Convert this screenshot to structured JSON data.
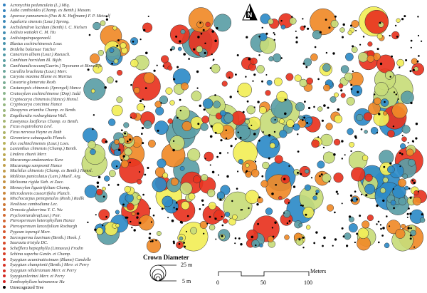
{
  "legend": {
    "items": [
      "Acronychia pedunculata (L.) Miq.",
      "Aidia canthioides (Champ. ex Benth.) Masam.",
      "Aporosa yunnanensis (Pax & K. Hoffmann) F. P. Metcalf",
      "Aquilaria sinensis (Lour.) Spreng.",
      "Archidendron lucidum (Benth) I. C. Nielsen",
      "Ardisia waitakii C. M. Hu",
      "Ardisiaquinquegonaoll.",
      "Blastus cochinchinensis Lour.",
      "Bridelia balansae Tutcher",
      "Canarium album (Lour.) Raeusch.",
      "Canthium horridum Bl. Bijdr.",
      "Canthiumdicoccum(Gaertn.) Teysmann et Binnedijk",
      "Carallia brachiata (Lour.) Merr.",
      "Caryota maxima Blume ex Martius",
      "Casearia glomerata Roxb.",
      "Castanopsis chinensis (Sprengel) Hance",
      "Cratoxylum cochinchinense (Dop) Judd",
      "Cryptocarya chinensis (Hance) Hemsl.",
      "Cryptocarya concinna Hance",
      "Diospyros eriantha Champ. ex Benth.",
      "Engelhardia roxburghiana Wall.",
      "Euonymus laxiflorus Champ. ex Benth.",
      "Ficus esquiroliana Levl.",
      "Ficus nervosa Heyne ex Roth",
      "Gironniera subaequalis Planch.",
      "Ilex cochinchinensis (Lour.) Loes.",
      "Lasianthus chinensis (Champ.) Benth.",
      "Lindera chunii Merr.",
      "Macaranga andamanica Kurz",
      "Macaranga sampsonii Hance",
      "Machilus chinensis (Champ. ex Benth.) Hemsl.",
      "Mallotus paniculatus (Lam.) Muell. Arg.",
      "Meliosma rigida Sieb. et Zucc.",
      "Memecylon ligustrifolium Champ.",
      "Microdesmis caseariifolia Planch.",
      "Mischocarpus pentapetalus (Roxb.) Radlk",
      "Neolitsea cambodiana Lec.",
      "Ormosia glaberrima Y. C. Wu",
      "Psychotriarubra(Lour.) Poir.",
      "Pterospermum heterophyllum Hance",
      "Pterospermum lanceifolium Roxburgh",
      "Pygeum topengii Merr.",
      "Sarcosperma laurinum (Benth.) Hook. f.",
      "Saurauia tristyla DC.",
      "Schefflera heptaphylla (Linnaeus) Frodin",
      "Schima superba Gardn. et Champ.",
      "Syzygium acuminatissimum (Blume) Candolle",
      "Syzygium championii (Benth.) Merr. et Perry",
      "Syzygium rehderianum Merr. et Perry",
      "Syzygiumlevinei Merr. et Perry",
      "Xanthophyllum hainanense Hu",
      "Unrecognized Tree"
    ],
    "gradient": [
      "#2f7fc0",
      "#4d97a8",
      "#8fb88a",
      "#b7b25a",
      "#c88a3a",
      "#d8502a",
      "#d42020"
    ],
    "unrecognized_color": "#000000"
  },
  "map_palette": [
    "#2e8bc8",
    "#5b9ea6",
    "#c8dc7a",
    "#f2ee58",
    "#f08a28",
    "#e8331f"
  ],
  "crown_diameter": {
    "title": "Crown Diameter",
    "max_label": "25 m",
    "min_label": "5 m"
  },
  "scale_bar": {
    "unit": "Meters",
    "ticks": [
      "0",
      "50",
      "100"
    ]
  },
  "north_arrow": {
    "label": "N"
  }
}
